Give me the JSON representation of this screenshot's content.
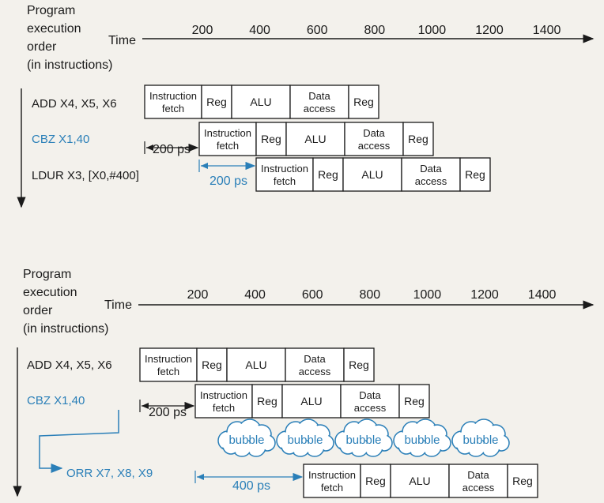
{
  "colors": {
    "ink": "#1a1a1a",
    "accent": "#2a7fb8",
    "paper": "#f3f1ec",
    "box_fill": "#ffffff"
  },
  "diagrams": [
    {
      "ylabel": [
        "Program",
        "execution",
        "order",
        "(in instructions)"
      ],
      "time_label": "Time",
      "ticks": [
        "200",
        "400",
        "600",
        "800",
        "1000",
        "1200",
        "1400"
      ],
      "instructions": [
        {
          "text": "ADD X4, X5, X6",
          "color": "ink",
          "stages": [
            {
              "label": "Instruction\nfetch"
            },
            {
              "label": "Reg"
            },
            {
              "label": "ALU"
            },
            {
              "label": "Data\naccess"
            },
            {
              "label": "Reg"
            }
          ]
        },
        {
          "text": "CBZ X1,40",
          "color": "accent",
          "stages": [
            {
              "label": "Instruction\nfetch"
            },
            {
              "label": "Reg"
            },
            {
              "label": "ALU"
            },
            {
              "label": "Data\naccess"
            },
            {
              "label": "Reg"
            }
          ]
        },
        {
          "text": "LDUR X3, [X0,#400]",
          "color": "ink",
          "stages": [
            {
              "label": "Instruction\nfetch"
            },
            {
              "label": "Reg"
            },
            {
              "label": "ALU"
            },
            {
              "label": "Data\naccess"
            },
            {
              "label": "Reg"
            }
          ]
        }
      ],
      "delays": [
        {
          "label": "200 ps",
          "color": "ink"
        },
        {
          "label": "200 ps",
          "color": "accent"
        }
      ]
    },
    {
      "ylabel": [
        "Program",
        "execution",
        "order",
        "(in instructions)"
      ],
      "time_label": "Time",
      "ticks": [
        "200",
        "400",
        "600",
        "800",
        "1000",
        "1200",
        "1400"
      ],
      "instructions": [
        {
          "text": "ADD X4, X5, X6",
          "color": "ink",
          "stages": [
            {
              "label": "Instruction\nfetch"
            },
            {
              "label": "Reg"
            },
            {
              "label": "ALU"
            },
            {
              "label": "Data\naccess"
            },
            {
              "label": "Reg"
            }
          ]
        },
        {
          "text": "CBZ X1,40",
          "color": "accent",
          "stages": [
            {
              "label": "Instruction\nfetch"
            },
            {
              "label": "Reg"
            },
            {
              "label": "ALU"
            },
            {
              "label": "Data\naccess"
            },
            {
              "label": "Reg"
            }
          ]
        },
        {
          "text": "ORR X7, X8, X9",
          "color": "accent",
          "stages": [
            {
              "label": "Instruction\nfetch"
            },
            {
              "label": "Reg"
            },
            {
              "label": "ALU"
            },
            {
              "label": "Data\naccess"
            },
            {
              "label": "Reg"
            }
          ]
        }
      ],
      "bubbles": [
        "bubble",
        "bubble",
        "bubble",
        "bubble",
        "bubble"
      ],
      "delays": [
        {
          "label": "200 ps",
          "color": "ink"
        },
        {
          "label": "400 ps",
          "color": "accent"
        }
      ]
    }
  ]
}
